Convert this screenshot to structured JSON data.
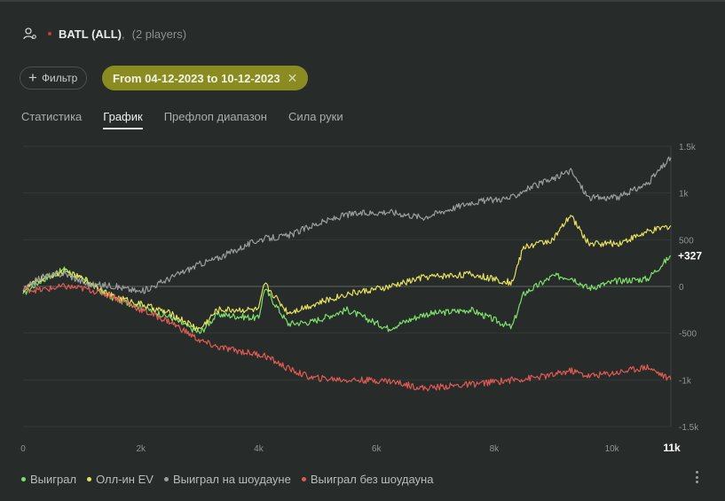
{
  "header": {
    "title": "BATL (ALL)",
    "comma": ",",
    "subtitle": "(2 players)"
  },
  "filter": {
    "label": "Фильтр"
  },
  "date_range": {
    "label": "From 04-12-2023 to 10-12-2023"
  },
  "tabs": [
    {
      "label": "Статистика",
      "active": false
    },
    {
      "label": "График",
      "active": true
    },
    {
      "label": "Префлоп диапазон",
      "active": false
    },
    {
      "label": "Сила руки",
      "active": false
    }
  ],
  "chart_data": {
    "type": "line",
    "x_ticks": [
      "0",
      "2k",
      "4k",
      "6k",
      "8k",
      "10k"
    ],
    "x_max_label": "11k",
    "y_ticks": [
      "1.5k",
      "1k",
      "500",
      "0",
      "-500",
      "-1k",
      "-1.5k"
    ],
    "xlim": [
      0,
      11000
    ],
    "ylim": [
      -1500,
      1500
    ],
    "end_label": "+327",
    "grid": true,
    "legend_position": "bottom",
    "series": [
      {
        "name": "Выиграл",
        "color": "#7ee06b",
        "x": [
          0,
          300,
          700,
          1100,
          1500,
          2000,
          2500,
          3000,
          3300,
          4000,
          4100,
          4500,
          4900,
          5500,
          6200,
          6800,
          7600,
          8300,
          8500,
          9000,
          9300,
          9600,
          10100,
          10600,
          11000
        ],
        "y": [
          -80,
          60,
          180,
          40,
          -120,
          -220,
          -330,
          -500,
          -300,
          -340,
          -20,
          -400,
          -380,
          -250,
          -450,
          -300,
          -250,
          -440,
          -80,
          110,
          100,
          -20,
          60,
          80,
          327
        ]
      },
      {
        "name": "Олл-ин EV",
        "color": "#e6e15e",
        "x": [
          0,
          300,
          700,
          1100,
          1500,
          2000,
          2500,
          3000,
          3300,
          4000,
          4100,
          4500,
          4900,
          5500,
          6200,
          6800,
          7600,
          8300,
          8500,
          9000,
          9300,
          9600,
          10100,
          10600,
          11000
        ],
        "y": [
          -40,
          80,
          160,
          60,
          -100,
          -190,
          -290,
          -460,
          -250,
          -250,
          30,
          -280,
          -200,
          -80,
          -10,
          100,
          130,
          40,
          420,
          500,
          760,
          460,
          460,
          580,
          650
        ]
      },
      {
        "name": "Выиграл на шоудауне",
        "color": "#9a9e9c",
        "x": [
          0,
          300,
          700,
          1100,
          1500,
          2000,
          2500,
          3000,
          3300,
          4000,
          4100,
          4500,
          4900,
          5500,
          6200,
          6800,
          7600,
          8300,
          8500,
          9000,
          9300,
          9600,
          10100,
          10600,
          11000
        ],
        "y": [
          -40,
          100,
          140,
          20,
          10,
          -60,
          90,
          240,
          300,
          500,
          510,
          540,
          650,
          770,
          800,
          740,
          900,
          950,
          1030,
          1150,
          1240,
          950,
          950,
          1100,
          1380
        ]
      },
      {
        "name": "Выиграл без шоудауна",
        "color": "#e05a55",
        "x": [
          0,
          300,
          700,
          1100,
          1500,
          2000,
          2500,
          3000,
          3300,
          4000,
          4100,
          4500,
          4900,
          5500,
          6200,
          6800,
          7600,
          8300,
          8500,
          9000,
          9300,
          9600,
          10100,
          10600,
          11000
        ],
        "y": [
          -30,
          -40,
          0,
          -30,
          -100,
          -250,
          -380,
          -580,
          -650,
          -730,
          -740,
          -880,
          -980,
          -1000,
          -1010,
          -1090,
          -1050,
          -1000,
          -990,
          -950,
          -900,
          -960,
          -920,
          -860,
          -1000
        ]
      }
    ]
  }
}
